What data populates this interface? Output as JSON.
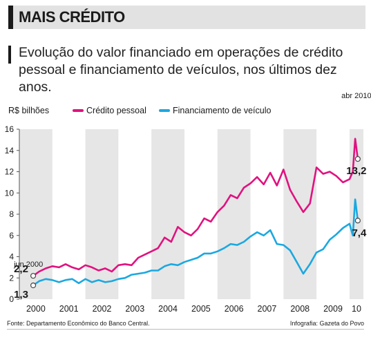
{
  "header": {
    "title": "MAIS CRÉDITO"
  },
  "subtitle": "Evolução do valor financiado em operações de crédito pessoal e financiamento de veículos, nos últimos dez anos.",
  "footer": {
    "source": "Fonte: Departamento Econômico do Banco Central.",
    "credit": "Infografia: Gazeta do Povo"
  },
  "chart_data": {
    "type": "line",
    "ylabel": "R$ bilhões",
    "ylim": [
      0,
      16
    ],
    "yticks": [
      0,
      2,
      4,
      6,
      8,
      10,
      12,
      14,
      16
    ],
    "xlim": [
      2000.42,
      2010.33
    ],
    "xtick_labels": [
      "2000",
      "2001",
      "2002",
      "2003",
      "2004",
      "2005",
      "2006",
      "2007",
      "2008",
      "2009",
      "10"
    ],
    "grid": "vertical year bands",
    "legend_position": "top",
    "annotations": [
      {
        "text": "jun 2000",
        "x": 2000.42,
        "y": 2.2
      },
      {
        "text": "2,2",
        "x": 2000.42,
        "y": 2.2
      },
      {
        "text": "1,3",
        "x": 2000.42,
        "y": 1.3
      },
      {
        "text": "abr 2010",
        "x": 2010.25,
        "y": 13.2
      },
      {
        "text": "13,2",
        "x": 2010.25,
        "y": 13.2
      },
      {
        "text": "7,4",
        "x": 2010.25,
        "y": 7.4
      }
    ],
    "series": [
      {
        "name": "Crédito pessoal",
        "color": "#e0127f",
        "x": [
          2000.42,
          2000.6,
          2000.8,
          2001.0,
          2001.2,
          2001.4,
          2001.6,
          2001.8,
          2002.0,
          2002.2,
          2002.4,
          2002.6,
          2002.8,
          2003.0,
          2003.2,
          2003.4,
          2003.6,
          2003.8,
          2004.0,
          2004.2,
          2004.4,
          2004.6,
          2004.8,
          2005.0,
          2005.2,
          2005.4,
          2005.6,
          2005.8,
          2006.0,
          2006.2,
          2006.4,
          2006.6,
          2006.8,
          2007.0,
          2007.2,
          2007.4,
          2007.6,
          2007.8,
          2008.0,
          2008.2,
          2008.4,
          2008.6,
          2008.8,
          2009.0,
          2009.2,
          2009.4,
          2009.6,
          2009.8,
          2010.0,
          2010.1,
          2010.17,
          2010.25
        ],
        "y": [
          2.2,
          2.6,
          2.9,
          3.1,
          3.0,
          3.3,
          3.0,
          2.8,
          3.2,
          3.0,
          2.7,
          2.9,
          2.6,
          3.2,
          3.3,
          3.2,
          3.9,
          4.2,
          4.5,
          4.8,
          5.8,
          5.4,
          6.8,
          6.3,
          6.0,
          6.6,
          7.6,
          7.3,
          8.2,
          8.8,
          9.8,
          9.5,
          10.5,
          10.9,
          11.5,
          10.8,
          11.9,
          10.7,
          12.2,
          10.3,
          9.2,
          8.2,
          9.0,
          12.4,
          11.8,
          12.0,
          11.6,
          11.0,
          11.3,
          12.0,
          15.1,
          13.2
        ]
      },
      {
        "name": "Financiamento de veículo",
        "color": "#1ba8e0",
        "x": [
          2000.42,
          2000.6,
          2000.8,
          2001.0,
          2001.2,
          2001.4,
          2001.6,
          2001.8,
          2002.0,
          2002.2,
          2002.4,
          2002.6,
          2002.8,
          2003.0,
          2003.2,
          2003.4,
          2003.6,
          2003.8,
          2004.0,
          2004.2,
          2004.4,
          2004.6,
          2004.8,
          2005.0,
          2005.2,
          2005.4,
          2005.6,
          2005.8,
          2006.0,
          2006.2,
          2006.4,
          2006.6,
          2006.8,
          2007.0,
          2007.2,
          2007.4,
          2007.6,
          2007.8,
          2008.0,
          2008.2,
          2008.4,
          2008.6,
          2008.8,
          2009.0,
          2009.2,
          2009.4,
          2009.6,
          2009.8,
          2010.0,
          2010.1,
          2010.17,
          2010.25
        ],
        "y": [
          1.3,
          1.7,
          1.9,
          1.8,
          1.6,
          1.8,
          1.9,
          1.5,
          1.9,
          1.6,
          1.8,
          1.6,
          1.7,
          1.9,
          2.0,
          2.3,
          2.4,
          2.5,
          2.7,
          2.7,
          3.1,
          3.3,
          3.2,
          3.5,
          3.7,
          3.9,
          4.3,
          4.3,
          4.5,
          4.8,
          5.2,
          5.1,
          5.4,
          5.9,
          6.3,
          6.0,
          6.5,
          5.2,
          5.1,
          4.6,
          3.5,
          2.4,
          3.3,
          4.4,
          4.7,
          5.6,
          6.1,
          6.7,
          7.1,
          6.0,
          9.4,
          7.4
        ]
      }
    ]
  }
}
